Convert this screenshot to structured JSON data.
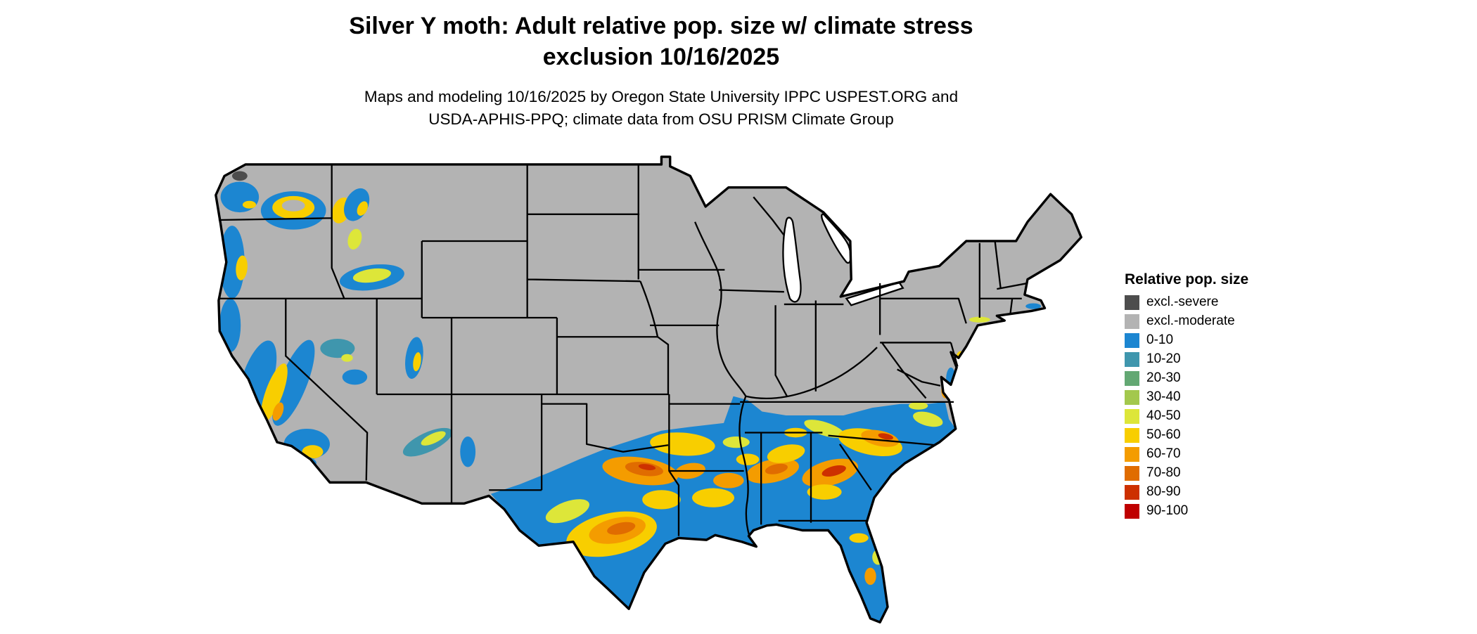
{
  "title": {
    "line1": "Silver Y moth: Adult relative pop. size w/ climate stress",
    "line2": "exclusion 10/16/2025"
  },
  "subtitle": {
    "line1": "Maps and modeling 10/16/2025 by Oregon State University IPPC USPEST.ORG and",
    "line2": "USDA-APHIS-PPQ; climate data from OSU PRISM Climate Group"
  },
  "legend": {
    "title": "Relative pop. size",
    "items": [
      {
        "label": "excl.-severe",
        "key": "excl_severe"
      },
      {
        "label": "excl.-moderate",
        "key": "excl_moderate"
      },
      {
        "label": "0-10",
        "key": "b0_10"
      },
      {
        "label": "10-20",
        "key": "b10_20"
      },
      {
        "label": "20-30",
        "key": "b20_30"
      },
      {
        "label": "30-40",
        "key": "b30_40"
      },
      {
        "label": "40-50",
        "key": "b40_50"
      },
      {
        "label": "50-60",
        "key": "b50_60"
      },
      {
        "label": "60-70",
        "key": "b60_70"
      },
      {
        "label": "70-80",
        "key": "b70_80"
      },
      {
        "label": "80-90",
        "key": "b80_90"
      },
      {
        "label": "90-100",
        "key": "b90_100"
      }
    ]
  },
  "palette": {
    "excl_severe": "#4d4d4d",
    "excl_moderate": "#b3b3b3",
    "b0_10": "#1c86d1",
    "b10_20": "#3f96ad",
    "b20_30": "#63a873",
    "b30_40": "#a3c84d",
    "b40_50": "#dde639",
    "b50_60": "#f8ce00",
    "b60_70": "#f49c00",
    "b70_80": "#e06c00",
    "b80_90": "#cd3000",
    "b90_100": "#bf0000"
  },
  "map": {
    "label": "Contiguous United States relative population size map"
  }
}
